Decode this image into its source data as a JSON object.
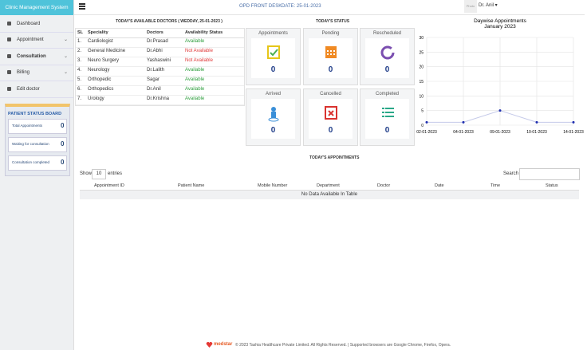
{
  "sidebar": {
    "brand": "Clinic Management System",
    "menu": [
      "Dashboard",
      "Appointment",
      "Consultation",
      "Billing",
      "Edit doctor"
    ],
    "board": {
      "title": "PATIENT STATUS BOARD",
      "items": [
        {
          "label": "Total Appointments",
          "count": 0
        },
        {
          "label": "Waiting for consultation",
          "count": 0
        },
        {
          "label": "Consultation completed",
          "count": 0
        }
      ]
    }
  },
  "header": {
    "title": "OPD FRONT DESK",
    "date": "DATE: 25-01-2023",
    "photo": "Photo",
    "user": "Dr. Anil"
  },
  "doctors": {
    "title": "TODAY'S AVAILABLE DOCTORS ( WEDDAY, 25-01-2023 )",
    "columns": [
      "SL",
      "Speciality",
      "Doctors",
      "Availability Status"
    ],
    "rows": [
      {
        "sl": "1.",
        "speciality": "Cardiologist",
        "doctor": "Dr.Prasad",
        "status": "Available",
        "color": "#2e9e3e"
      },
      {
        "sl": "2.",
        "speciality": "General Medicine",
        "doctor": "Dr.Abhi",
        "status": "Not Available",
        "color": "#e03a3a"
      },
      {
        "sl": "3.",
        "speciality": "Neuro Surgery",
        "doctor": "Yashaswini",
        "status": "Not Available",
        "color": "#e03a3a"
      },
      {
        "sl": "4.",
        "speciality": "Neurology",
        "doctor": "Dr.Lalith",
        "status": "Available",
        "color": "#2e9e3e"
      },
      {
        "sl": "5.",
        "speciality": "Orthopedic",
        "doctor": "Sagar",
        "status": "Available",
        "color": "#2e9e3e"
      },
      {
        "sl": "6.",
        "speciality": "Orthopedics",
        "doctor": "Dr.Anil",
        "status": "Available",
        "color": "#2e9e3e"
      },
      {
        "sl": "7.",
        "speciality": "Urology",
        "doctor": "Dr.Krishna",
        "status": "Available",
        "color": "#2e9e3e"
      }
    ]
  },
  "status": {
    "title": "TODAY'S STATUS",
    "cards": [
      {
        "title": "Appointments",
        "count": 0,
        "color": "#e6c619"
      },
      {
        "title": "Pending",
        "count": 0,
        "color": "#f08a24"
      },
      {
        "title": "Rescheduled",
        "count": 0,
        "color": "#7b4fb0"
      },
      {
        "title": "Arrived",
        "count": 0,
        "color": "#3a8fd8"
      },
      {
        "title": "Cancelled",
        "count": 0,
        "color": "#d9332f"
      },
      {
        "title": "Completed",
        "count": 0,
        "color": "#2aa888"
      }
    ]
  },
  "chart_data": {
    "type": "line",
    "title": "Daywise Appointments",
    "subtitle": "January 2023",
    "categories": [
      "02-01-2023",
      "04-01-2023",
      "09-01-2023",
      "10-01-2023",
      "14-01-2023"
    ],
    "values": [
      1,
      1,
      5,
      1,
      1
    ],
    "color": "#1f2fb0",
    "ylim": [
      0,
      30
    ],
    "yticks": [
      0,
      5,
      10,
      15,
      20,
      25,
      30
    ],
    "grid": true
  },
  "appointments": {
    "title": "TODAY'S APPOINTMENTS",
    "show": "Show",
    "entries_value": "10",
    "entries": "entries",
    "search": "Search",
    "columns": [
      "Appointment ID",
      "Patient Name",
      "Mobile Number",
      "Department",
      "Doctor",
      "Date",
      "Time",
      "Status"
    ],
    "empty": "No Data Available In Table"
  },
  "footer": {
    "logo": "medstar",
    "text": "© 2023 Tashia Healthcare Private Limited. All Rights Reserved. | Supported browsers are Google Chrome, Firefox, Opera."
  }
}
